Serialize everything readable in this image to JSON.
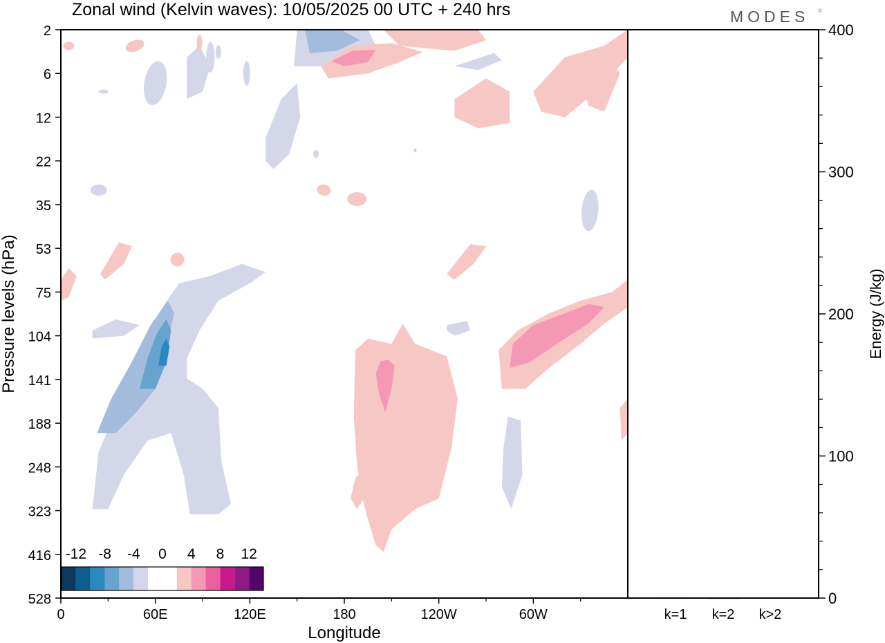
{
  "title": "Zonal wind (Kelvin waves):  10/05/2025  00 UTC  + 240 hrs",
  "logo": "MODES",
  "chart_data": [
    {
      "type": "heatmap",
      "title": "Zonal wind (Kelvin waves):  10/05/2025  00 UTC  + 240 hrs",
      "xlabel": "Longitude",
      "ylabel": "Pressure levels (hPa)",
      "x_ticks": [
        "0",
        "60E",
        "120E",
        "180",
        "120W",
        "60W"
      ],
      "y_ticks": [
        "2",
        "6",
        "12",
        "22",
        "35",
        "53",
        "75",
        "104",
        "141",
        "188",
        "248",
        "323",
        "416",
        "528"
      ],
      "colorbar": {
        "labels": [
          "-12",
          "-8",
          "-4",
          "0",
          "4",
          "8",
          "12"
        ],
        "colors": [
          "#0d3a5c",
          "#0f5c8f",
          "#2a87c0",
          "#67a3cf",
          "#a3bcdc",
          "#d4d6e9",
          "#ffffff",
          "#ffffff",
          "#f7c7c3",
          "#f598b5",
          "#eb5fa1",
          "#c8188c",
          "#901a85",
          "#54036c"
        ]
      },
      "anomalies": [
        {
          "sign": "negative",
          "peak": -12,
          "lon_center": 68,
          "lev_center": 118,
          "lon_extent": [
            20,
            130
          ],
          "lev_extent": [
            60,
            330
          ]
        },
        {
          "sign": "positive",
          "peak": 6,
          "lon_center": 208,
          "lev_center": 160,
          "lon_extent": [
            185,
            245
          ],
          "lev_extent": [
            100,
            380
          ]
        },
        {
          "sign": "positive",
          "peak": 6,
          "lon_center": 320,
          "lev_center": 110,
          "lon_extent": [
            278,
            360
          ],
          "lev_extent": [
            75,
            150
          ]
        },
        {
          "sign": "negative",
          "peak": -6,
          "lon_center": 165,
          "lev_center": 3,
          "lon_extent": [
            150,
            195
          ],
          "lev_extent": [
            2,
            6
          ]
        },
        {
          "sign": "positive",
          "peak": 6,
          "lon_center": 185,
          "lev_center": 4,
          "lon_extent": [
            170,
            230
          ],
          "lev_extent": [
            2,
            7
          ]
        }
      ]
    },
    {
      "type": "bar",
      "categories": [
        "k=1",
        "k=2",
        "k>2"
      ],
      "values": [
        0.5,
        0.2,
        0.3
      ],
      "ylabel": "Energy (J/kg)",
      "ylim": [
        0,
        400
      ],
      "y_ticks": [
        "0",
        "100",
        "200",
        "300",
        "400"
      ]
    }
  ]
}
